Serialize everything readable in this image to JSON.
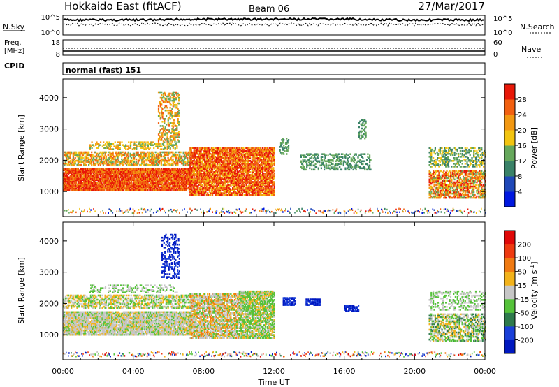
{
  "header": {
    "station": "Hokkaido East (fitACF)",
    "beam": "Beam 06",
    "date": "27/Mar/2017"
  },
  "top_panels": {
    "nsky_label": "N.Sky",
    "nsky_ticks": [
      "10^5",
      "10^0"
    ],
    "nsearch_label": "N.Search",
    "nsearch_ticks": [
      "10^5",
      "10^0"
    ],
    "freq_label": "Freq.",
    "freq_unit": "[MHz]",
    "freq_ticks": [
      "18",
      "8"
    ],
    "nave_label": "Nave",
    "nave_ticks": [
      "60",
      "0"
    ],
    "cpid_label": "CPID",
    "cpid_text": "normal (fast) 151"
  },
  "chart_data": [
    {
      "type": "heatmap",
      "name": "power",
      "ylabel": "Slant Range [km]",
      "y_ticks": [
        1000,
        2000,
        3000,
        4000
      ],
      "ylim": [
        200,
        4600
      ],
      "colorbar_label": "Power [dB]",
      "colorbar_ticks": [
        4,
        8,
        12,
        16,
        20,
        24,
        28
      ],
      "colorbar_colors": [
        "#0018e0",
        "#1f48b8",
        "#3a8268",
        "#66a85c",
        "#f2c410",
        "#f29812",
        "#f26010",
        "#e81808"
      ]
    },
    {
      "type": "heatmap",
      "name": "velocity",
      "ylabel": "Slant Range [km]",
      "y_ticks": [
        1000,
        2000,
        3000,
        4000
      ],
      "ylim": [
        200,
        4600
      ],
      "colorbar_label": "Velocity [m s",
      "colorbar_label_sup": "-1",
      "colorbar_label_end": "]",
      "colorbar_ticks": [
        "200",
        "100",
        "50",
        "15",
        "-15",
        "-50",
        "-100",
        "-200"
      ],
      "colorbar_colors": [
        "#0018c0",
        "#1a3fd8",
        "#2e7a4c",
        "#55c23a",
        "#c6c6c6",
        "#f2b21a",
        "#f07a12",
        "#ee3a10",
        "#e00808"
      ]
    }
  ],
  "x_axis": {
    "xlabel": "Time UT",
    "xlim": [
      0,
      24
    ],
    "tick_labels": [
      "00:00",
      "04:00",
      "08:00",
      "12:00",
      "16:00",
      "20:00",
      "00:00"
    ],
    "tick_hours": [
      0,
      4,
      8,
      12,
      16,
      20,
      24
    ]
  }
}
